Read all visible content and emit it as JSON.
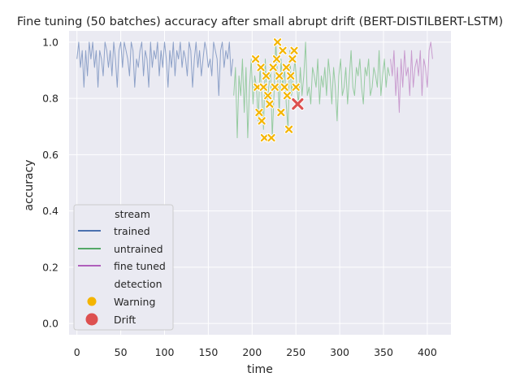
{
  "chart_data": {
    "type": "line",
    "title": "Fine tuning (50 batches) accuracy after small abrupt drift (BERT-DISTILBERT-LSTM)",
    "xlabel": "time",
    "ylabel": "accuracy",
    "xlim": [
      -9,
      427
    ],
    "ylim": [
      -0.04,
      1.04
    ],
    "xticks": [
      0,
      50,
      100,
      150,
      200,
      250,
      300,
      350,
      400
    ],
    "yticks": [
      0.0,
      0.2,
      0.4,
      0.6,
      0.8,
      1.0
    ],
    "grid": true,
    "legend_placement": "lower-left",
    "legend": {
      "stream_title": "stream",
      "detection_title": "detection",
      "entries": [
        {
          "label": "trained",
          "kind": "line",
          "color": "#4c72b0"
        },
        {
          "label": "untrained",
          "kind": "line",
          "color": "#55a868"
        },
        {
          "label": "fine tuned",
          "kind": "line",
          "color": "#b05fbb"
        },
        {
          "label": "Warning",
          "kind": "marker",
          "color": "#f4b400"
        },
        {
          "label": "Drift",
          "kind": "marker",
          "color": "#dd5050"
        }
      ]
    },
    "series": [
      {
        "name": "trained",
        "color": "#8da1c8",
        "x": [
          0,
          2,
          4,
          6,
          8,
          10,
          12,
          14,
          16,
          18,
          20,
          22,
          24,
          26,
          28,
          30,
          32,
          34,
          36,
          38,
          40,
          42,
          44,
          46,
          48,
          50,
          52,
          54,
          56,
          58,
          60,
          62,
          64,
          66,
          68,
          70,
          72,
          74,
          76,
          78,
          80,
          82,
          84,
          86,
          88,
          90,
          92,
          94,
          96,
          98,
          100,
          102,
          104,
          106,
          108,
          110,
          112,
          114,
          116,
          118,
          120,
          122,
          124,
          126,
          128,
          130,
          132,
          134,
          136,
          138,
          140,
          142,
          144,
          146,
          148,
          150,
          152,
          154,
          156,
          158,
          160,
          162,
          164,
          166,
          168,
          170,
          172,
          174,
          176,
          178
        ],
        "y": [
          0.94,
          1.0,
          0.91,
          0.97,
          0.84,
          0.97,
          0.88,
          1.0,
          0.94,
          1.0,
          0.91,
          0.97,
          0.84,
          0.97,
          0.94,
          0.88,
          1.0,
          0.97,
          0.91,
          0.97,
          0.88,
          1.0,
          0.94,
          0.84,
          0.97,
          1.0,
          0.91,
          1.0,
          0.97,
          0.94,
          0.88,
          1.0,
          0.97,
          0.84,
          0.94,
          0.91,
          0.97,
          1.0,
          0.88,
          0.97,
          0.94,
          0.84,
          1.0,
          0.91,
          0.97,
          0.94,
          1.0,
          0.88,
          0.97,
          0.91,
          1.0,
          0.94,
          0.84,
          0.97,
          0.91,
          1.0,
          0.88,
          0.97,
          0.94,
          1.0,
          0.91,
          0.97,
          0.94,
          0.88,
          1.0,
          0.97,
          0.84,
          0.94,
          1.0,
          0.91,
          0.97,
          0.88,
          0.94,
          1.0,
          0.97,
          0.91,
          0.94,
          0.88,
          1.0,
          0.97,
          0.94,
          0.81,
          0.97,
          1.0,
          0.91,
          0.97,
          0.94,
          1.0,
          0.88,
          0.94
        ]
      },
      {
        "name": "untrained",
        "color": "#96cba0",
        "x": [
          179,
          181,
          183,
          185,
          187,
          189,
          191,
          193,
          195,
          197,
          199,
          201,
          203,
          205,
          207,
          209,
          211,
          213,
          215,
          217,
          219,
          221,
          223,
          225,
          227,
          229,
          231,
          233,
          235,
          237,
          239,
          241,
          243,
          245,
          247,
          249,
          251,
          253,
          255,
          257,
          259,
          261,
          263,
          265,
          267,
          269,
          271,
          273,
          275,
          277,
          279,
          281,
          283,
          285,
          287,
          289,
          291,
          293,
          295,
          297,
          299,
          301,
          303,
          305,
          307,
          309,
          311,
          313,
          315,
          317,
          319,
          321,
          323,
          325,
          327,
          329,
          331,
          333,
          335,
          337,
          339,
          341,
          343,
          345,
          347,
          349,
          351,
          353,
          355,
          357
        ],
        "y": [
          0.81,
          0.91,
          0.66,
          0.88,
          0.81,
          0.94,
          0.75,
          0.91,
          0.66,
          0.84,
          0.94,
          0.78,
          0.88,
          0.84,
          0.72,
          0.91,
          0.81,
          0.69,
          0.94,
          0.78,
          0.84,
          0.91,
          0.66,
          0.81,
          1.0,
          0.88,
          0.75,
          0.94,
          0.84,
          0.91,
          0.78,
          0.69,
          0.97,
          0.81,
          0.88,
          0.94,
          0.84,
          0.78,
          0.91,
          0.81,
          0.88,
          1.0,
          0.81,
          0.84,
          0.78,
          0.91,
          0.88,
          0.84,
          0.94,
          0.78,
          0.88,
          0.84,
          0.91,
          0.81,
          0.94,
          0.88,
          0.78,
          0.91,
          0.84,
          0.72,
          0.88,
          0.94,
          0.81,
          0.84,
          0.91,
          0.78,
          0.88,
          0.97,
          0.84,
          0.81,
          0.91,
          0.88,
          0.94,
          0.84,
          0.78,
          0.91,
          0.88,
          0.94,
          0.81,
          0.84,
          0.91,
          0.88,
          0.84,
          0.97,
          0.81,
          0.88,
          0.94,
          0.84,
          0.91,
          0.88
        ]
      },
      {
        "name": "fine tuned",
        "color": "#c99ccf",
        "x": [
          358,
          360,
          362,
          364,
          366,
          368,
          370,
          372,
          374,
          376,
          378,
          380,
          382,
          384,
          386,
          388,
          390,
          392,
          394,
          396,
          398,
          400,
          402,
          404,
          406
        ],
        "y": [
          0.94,
          0.88,
          0.97,
          0.81,
          0.91,
          0.75,
          0.94,
          0.84,
          0.97,
          0.88,
          0.91,
          0.81,
          0.97,
          0.84,
          0.91,
          0.94,
          0.88,
          0.97,
          0.81,
          0.94,
          0.91,
          0.84,
          0.97,
          1.0,
          0.94
        ]
      }
    ],
    "detections": [
      {
        "name": "Warning",
        "color": "#f4b400",
        "x": [
          204,
          206,
          208,
          210,
          211,
          213,
          214,
          216,
          218,
          220,
          222,
          224,
          226,
          228,
          229,
          231,
          233,
          235,
          237,
          239,
          240,
          242,
          244,
          246,
          248,
          250
        ],
        "y": [
          0.94,
          0.84,
          0.75,
          0.91,
          0.72,
          0.84,
          0.66,
          0.88,
          0.81,
          0.78,
          0.66,
          0.91,
          0.84,
          0.94,
          1.0,
          0.88,
          0.75,
          0.97,
          0.84,
          0.91,
          0.81,
          0.69,
          0.88,
          0.94,
          0.97,
          0.84
        ]
      },
      {
        "name": "Drift",
        "color": "#dd5050",
        "x": [
          252
        ],
        "y": [
          0.78
        ]
      }
    ]
  }
}
